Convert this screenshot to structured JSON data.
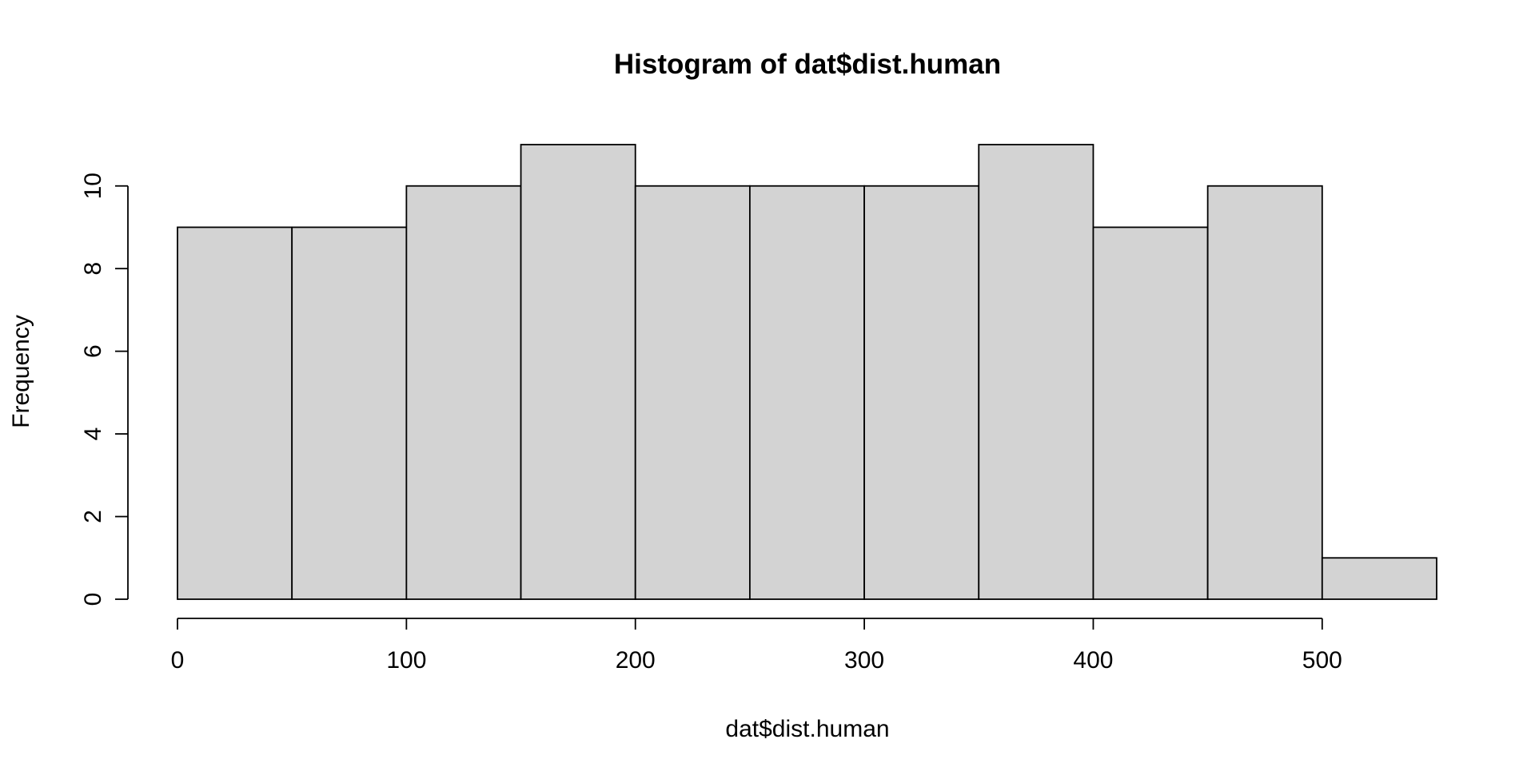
{
  "chart_data": {
    "type": "bar",
    "title": "Histogram of dat$dist.human",
    "xlabel": "dat$dist.human",
    "ylabel": "Frequency",
    "bins": [
      {
        "from": 0,
        "to": 50,
        "count": 9
      },
      {
        "from": 50,
        "to": 100,
        "count": 9
      },
      {
        "from": 100,
        "to": 150,
        "count": 10
      },
      {
        "from": 150,
        "to": 200,
        "count": 11
      },
      {
        "from": 200,
        "to": 250,
        "count": 10
      },
      {
        "from": 250,
        "to": 300,
        "count": 10
      },
      {
        "from": 300,
        "to": 350,
        "count": 10
      },
      {
        "from": 350,
        "to": 400,
        "count": 11
      },
      {
        "from": 400,
        "to": 450,
        "count": 9
      },
      {
        "from": 450,
        "to": 500,
        "count": 10
      },
      {
        "from": 500,
        "to": 550,
        "count": 1
      }
    ],
    "x_ticks": [
      0,
      100,
      200,
      300,
      400,
      500
    ],
    "y_ticks": [
      0,
      2,
      4,
      6,
      8,
      10
    ],
    "xlim": [
      0,
      550
    ],
    "ylim": [
      0,
      11
    ],
    "bar_color": "#d3d3d3",
    "grid": false
  }
}
